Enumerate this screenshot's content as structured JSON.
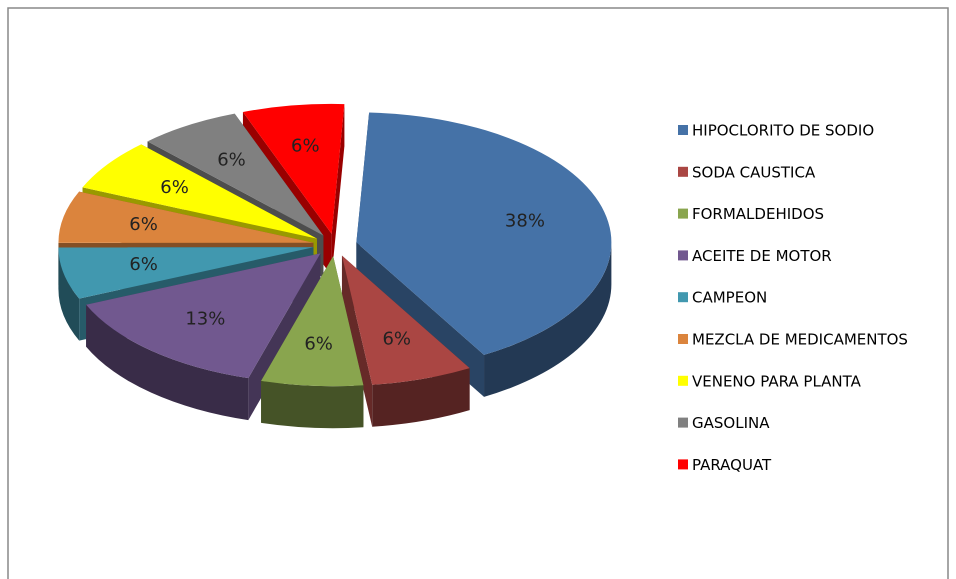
{
  "chart_data": {
    "type": "pie",
    "categories": [
      "HIPOCLORITO DE SODIO",
      "SODA CAUSTICA",
      "FORMALDEHIDOS",
      "ACEITE DE MOTOR",
      "CAMPEON",
      "MEZCLA DE MEDICAMENTOS",
      "VENENO PARA PLANTA",
      "GASOLINA",
      "PARAQUAT"
    ],
    "values": [
      38,
      6,
      6,
      13,
      6,
      6,
      6,
      6,
      6
    ],
    "value_labels": [
      "38%",
      "6%",
      "6%",
      "13%",
      "6%",
      "6%",
      "6%",
      "6%",
      "6%"
    ],
    "colors": [
      "#4572a7",
      "#aa4643",
      "#89a54e",
      "#71588f",
      "#4198af",
      "#db843d",
      "#ffff00",
      "#808080",
      "#ff0000"
    ],
    "legend": "right"
  }
}
